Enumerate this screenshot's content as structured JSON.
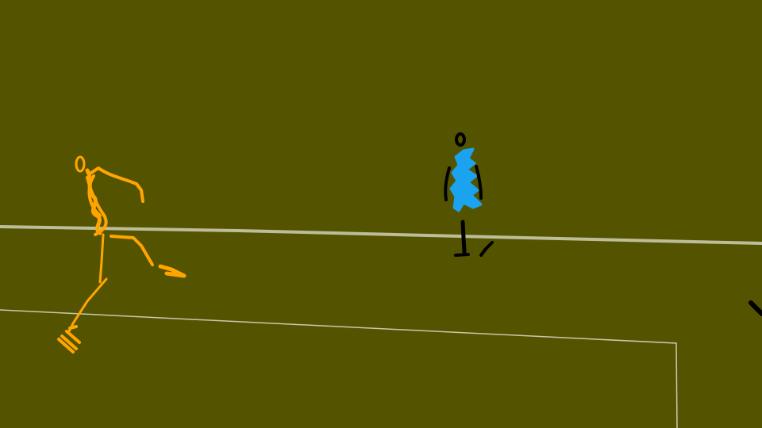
{
  "scene": {
    "kind": "sketch-animation-frame",
    "background_color": "#545400",
    "field_line_color": "#bdbd9a",
    "thin_line_color": "#c8c8b0"
  },
  "figures": [
    {
      "id": "orange-runner",
      "description_icon": "running-figure-icon",
      "color": "#ffa500"
    },
    {
      "id": "blue-walker",
      "description_icon": "standing-figure-icon",
      "shirt_color": "#1ba3f0",
      "outline_color": "#000000"
    },
    {
      "id": "edge-fragment",
      "description_icon": "partial-figure-icon",
      "color": "#000000"
    }
  ]
}
